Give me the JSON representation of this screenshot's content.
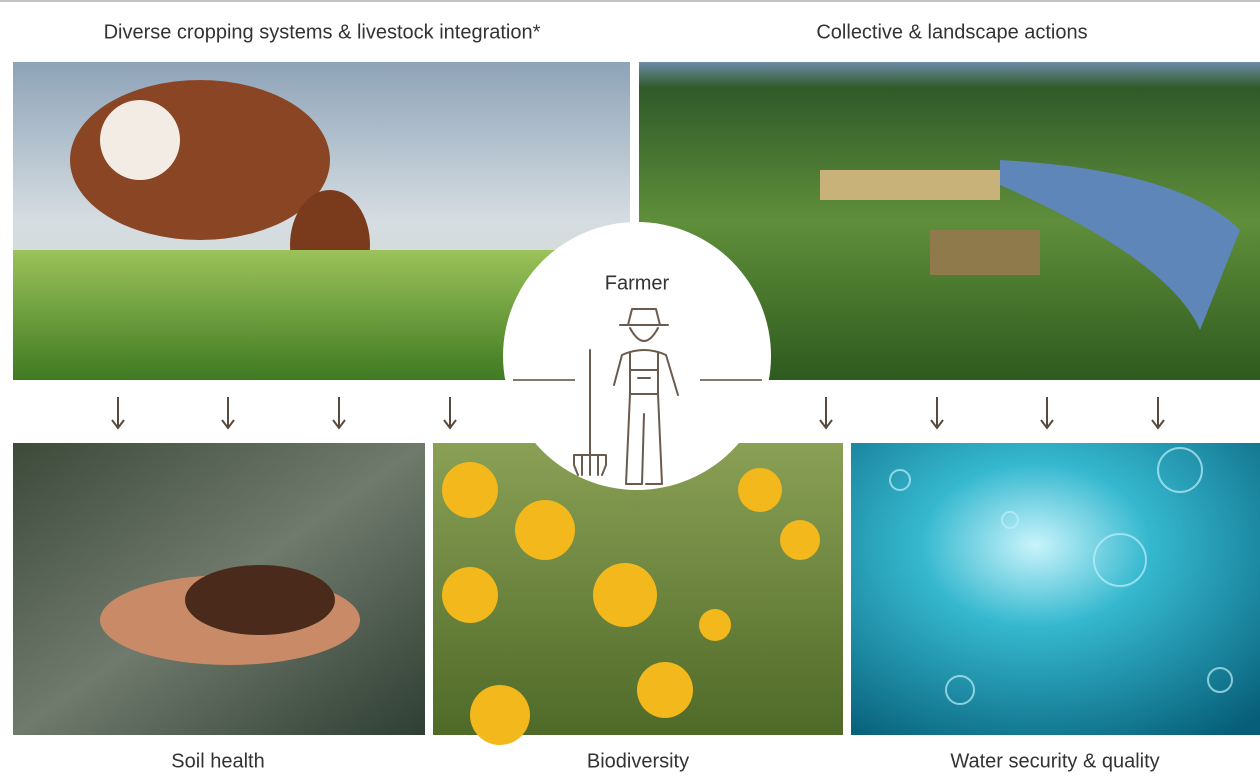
{
  "top_panels": [
    {
      "label": "Diverse cropping systems & livestock integration*"
    },
    {
      "label": "Collective & landscape actions"
    }
  ],
  "center": {
    "label": "Farmer"
  },
  "bottom_panels": [
    {
      "label": "Soil health"
    },
    {
      "label": "Biodiversity"
    },
    {
      "label": "Water security & quality"
    }
  ]
}
